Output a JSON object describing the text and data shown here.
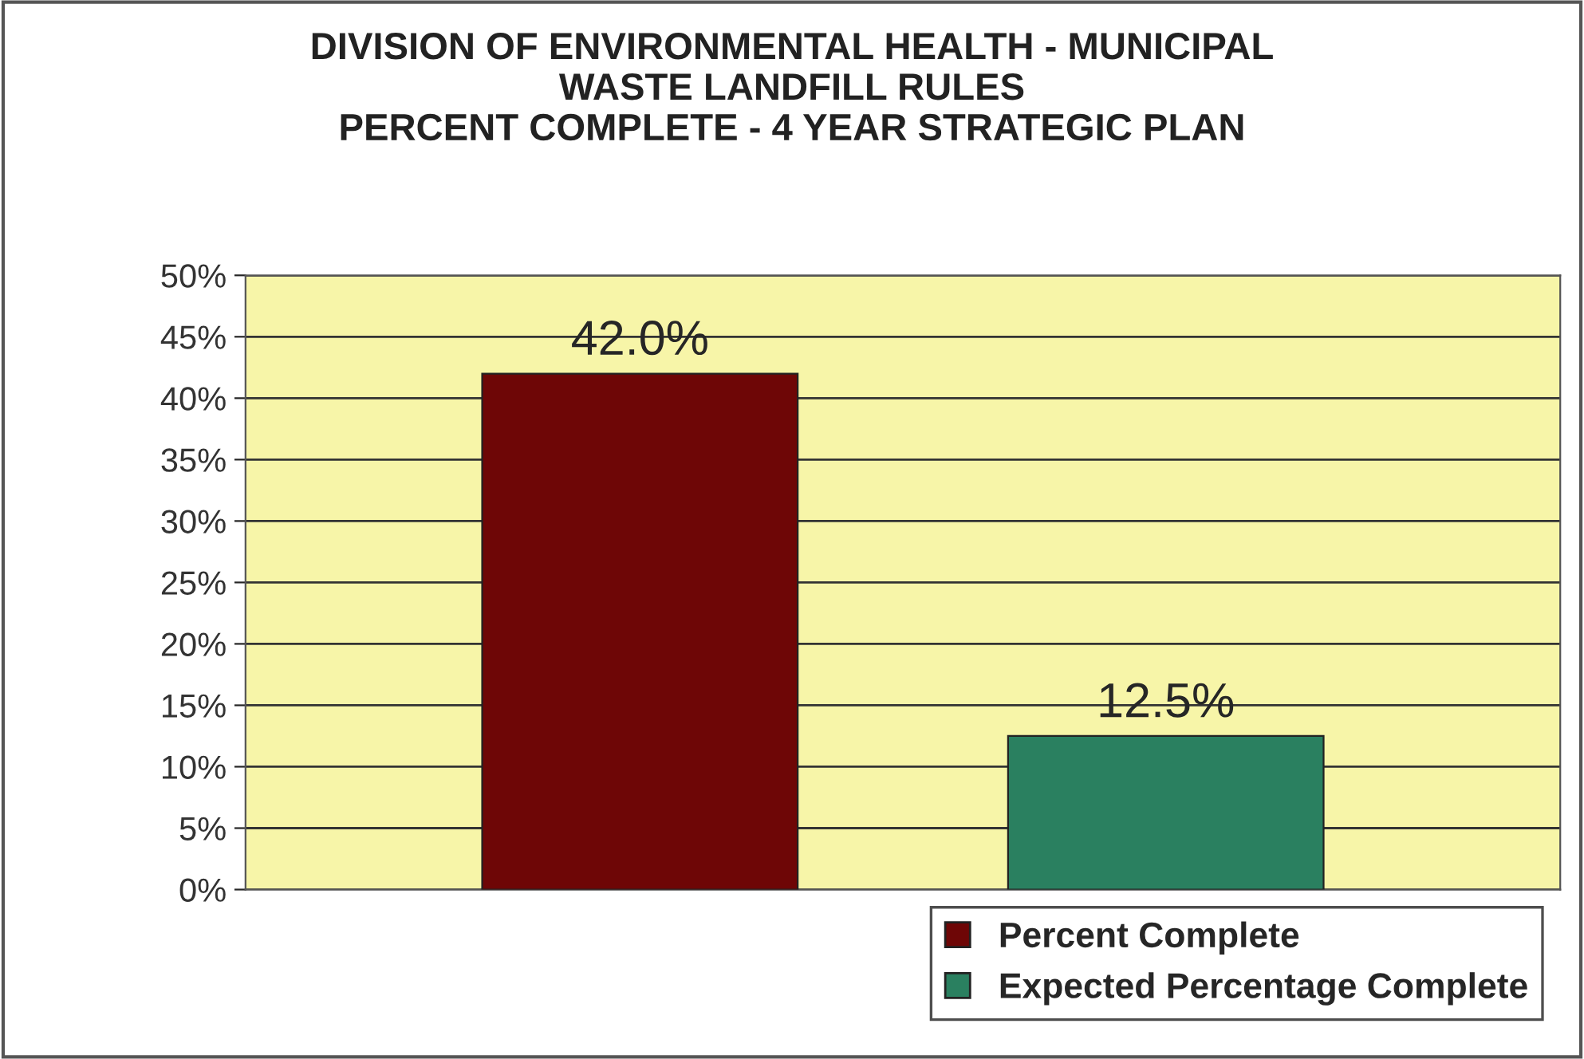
{
  "chart_data": {
    "type": "bar",
    "title": "DIVISION OF ENVIRONMENTAL HEALTH - MUNICIPAL\nWASTE LANDFILL RULES\nPERCENT COMPLETE - 4 YEAR STRATEGIC PLAN",
    "categories": [
      null
    ],
    "series": [
      {
        "name": "Percent Complete",
        "color": "#6e0606",
        "values": [
          42.0
        ],
        "value_labels": [
          "42.0%"
        ]
      },
      {
        "name": "Expected Percentage Complete",
        "color": "#2a8060",
        "values": [
          12.5
        ],
        "value_labels": [
          "12.5%"
        ]
      }
    ],
    "ylim": [
      0,
      50
    ],
    "yticks": [
      {
        "value": 0,
        "label": "0%"
      },
      {
        "value": 5,
        "label": "5%"
      },
      {
        "value": 10,
        "label": "10%"
      },
      {
        "value": 15,
        "label": "15%"
      },
      {
        "value": 20,
        "label": "20%"
      },
      {
        "value": 25,
        "label": "25%"
      },
      {
        "value": 30,
        "label": "30%"
      },
      {
        "value": 35,
        "label": "35%"
      },
      {
        "value": 40,
        "label": "40%"
      },
      {
        "value": 45,
        "label": "45%"
      },
      {
        "value": 50,
        "label": "50%"
      }
    ],
    "grid": "y",
    "legend": "bottom right"
  }
}
